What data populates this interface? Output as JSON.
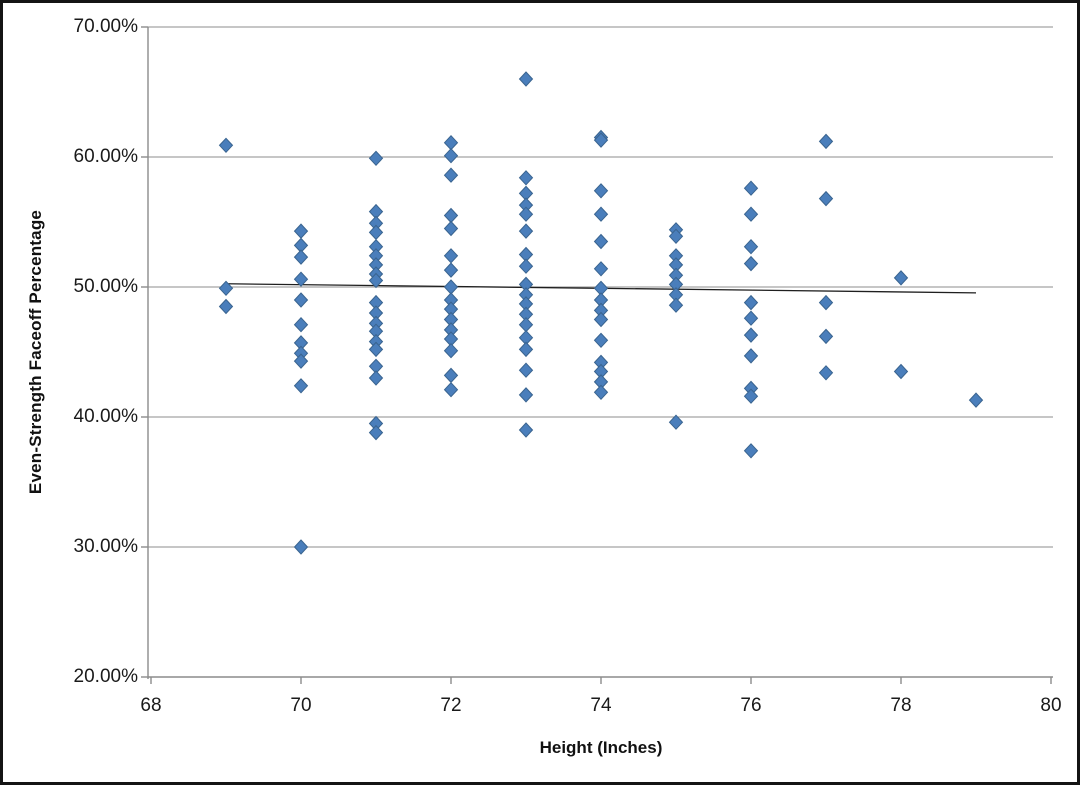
{
  "chart_data": {
    "type": "scatter",
    "title": "",
    "xlabel": "Height (Inches)",
    "ylabel": "Even-Strength Faceoff Percentage",
    "xlim": [
      68,
      80
    ],
    "ylim": [
      20,
      70
    ],
    "x_ticks": [
      "68",
      "70",
      "72",
      "74",
      "76",
      "78",
      "80"
    ],
    "x_tick_values": [
      68,
      70,
      72,
      74,
      76,
      78,
      80
    ],
    "y_ticks": [
      "70.00%",
      "60.00%",
      "50.00%",
      "40.00%",
      "30.00%",
      "20.00%"
    ],
    "y_tick_values": [
      70,
      60,
      50,
      40,
      30,
      20
    ],
    "grid": true,
    "legend": false,
    "colors": {
      "marker_fill": "#4A7EBB",
      "marker_border": "#3A648F",
      "gridline": "#8c8c8c",
      "axis": "#8c8c8c",
      "trendline": "#1f1f1f",
      "text": "#1a1a1a"
    },
    "marker_shape": "diamond",
    "trendline": {
      "x1": 69,
      "y1": 50.25,
      "x2": 79,
      "y2": 49.55
    },
    "points": [
      {
        "x": 69,
        "y": 60.9
      },
      {
        "x": 69,
        "y": 49.9
      },
      {
        "x": 69,
        "y": 48.5
      },
      {
        "x": 70,
        "y": 54.3
      },
      {
        "x": 70,
        "y": 53.2
      },
      {
        "x": 70,
        "y": 52.3
      },
      {
        "x": 70,
        "y": 50.6
      },
      {
        "x": 70,
        "y": 49.0
      },
      {
        "x": 70,
        "y": 47.1
      },
      {
        "x": 70,
        "y": 45.7
      },
      {
        "x": 70,
        "y": 44.9
      },
      {
        "x": 70,
        "y": 44.3
      },
      {
        "x": 70,
        "y": 42.4
      },
      {
        "x": 70,
        "y": 30.0
      },
      {
        "x": 71,
        "y": 59.9
      },
      {
        "x": 71,
        "y": 55.8
      },
      {
        "x": 71,
        "y": 54.9
      },
      {
        "x": 71,
        "y": 54.2
      },
      {
        "x": 71,
        "y": 53.1
      },
      {
        "x": 71,
        "y": 52.4
      },
      {
        "x": 71,
        "y": 51.7
      },
      {
        "x": 71,
        "y": 51.0
      },
      {
        "x": 71,
        "y": 50.5
      },
      {
        "x": 71,
        "y": 48.8
      },
      {
        "x": 71,
        "y": 48.0
      },
      {
        "x": 71,
        "y": 47.2
      },
      {
        "x": 71,
        "y": 46.6
      },
      {
        "x": 71,
        "y": 45.8
      },
      {
        "x": 71,
        "y": 45.2
      },
      {
        "x": 71,
        "y": 43.9
      },
      {
        "x": 71,
        "y": 43.0
      },
      {
        "x": 71,
        "y": 39.5
      },
      {
        "x": 71,
        "y": 38.8
      },
      {
        "x": 72,
        "y": 61.1
      },
      {
        "x": 72,
        "y": 60.1
      },
      {
        "x": 72,
        "y": 58.6
      },
      {
        "x": 72,
        "y": 55.5
      },
      {
        "x": 72,
        "y": 54.5
      },
      {
        "x": 72,
        "y": 52.4
      },
      {
        "x": 72,
        "y": 51.3
      },
      {
        "x": 72,
        "y": 50.0
      },
      {
        "x": 72,
        "y": 49.0
      },
      {
        "x": 72,
        "y": 48.3
      },
      {
        "x": 72,
        "y": 47.5
      },
      {
        "x": 72,
        "y": 46.7
      },
      {
        "x": 72,
        "y": 46.0
      },
      {
        "x": 72,
        "y": 45.1
      },
      {
        "x": 72,
        "y": 43.2
      },
      {
        "x": 72,
        "y": 42.1
      },
      {
        "x": 73,
        "y": 66.0
      },
      {
        "x": 73,
        "y": 58.4
      },
      {
        "x": 73,
        "y": 57.2
      },
      {
        "x": 73,
        "y": 56.3
      },
      {
        "x": 73,
        "y": 55.6
      },
      {
        "x": 73,
        "y": 54.3
      },
      {
        "x": 73,
        "y": 52.5
      },
      {
        "x": 73,
        "y": 51.6
      },
      {
        "x": 73,
        "y": 50.2
      },
      {
        "x": 73,
        "y": 49.4
      },
      {
        "x": 73,
        "y": 48.7
      },
      {
        "x": 73,
        "y": 47.9
      },
      {
        "x": 73,
        "y": 47.1
      },
      {
        "x": 73,
        "y": 46.1
      },
      {
        "x": 73,
        "y": 45.2
      },
      {
        "x": 73,
        "y": 43.6
      },
      {
        "x": 73,
        "y": 41.7
      },
      {
        "x": 73,
        "y": 39.0
      },
      {
        "x": 74,
        "y": 61.5
      },
      {
        "x": 74,
        "y": 61.3
      },
      {
        "x": 74,
        "y": 57.4
      },
      {
        "x": 74,
        "y": 55.6
      },
      {
        "x": 74,
        "y": 53.5
      },
      {
        "x": 74,
        "y": 51.4
      },
      {
        "x": 74,
        "y": 49.9
      },
      {
        "x": 74,
        "y": 49.0
      },
      {
        "x": 74,
        "y": 48.2
      },
      {
        "x": 74,
        "y": 47.5
      },
      {
        "x": 74,
        "y": 45.9
      },
      {
        "x": 74,
        "y": 44.2
      },
      {
        "x": 74,
        "y": 43.5
      },
      {
        "x": 74,
        "y": 42.7
      },
      {
        "x": 74,
        "y": 41.9
      },
      {
        "x": 75,
        "y": 54.4
      },
      {
        "x": 75,
        "y": 53.9
      },
      {
        "x": 75,
        "y": 52.4
      },
      {
        "x": 75,
        "y": 51.7
      },
      {
        "x": 75,
        "y": 50.9
      },
      {
        "x": 75,
        "y": 50.2
      },
      {
        "x": 75,
        "y": 49.4
      },
      {
        "x": 75,
        "y": 48.6
      },
      {
        "x": 75,
        "y": 39.6
      },
      {
        "x": 76,
        "y": 57.6
      },
      {
        "x": 76,
        "y": 55.6
      },
      {
        "x": 76,
        "y": 53.1
      },
      {
        "x": 76,
        "y": 51.8
      },
      {
        "x": 76,
        "y": 48.8
      },
      {
        "x": 76,
        "y": 47.6
      },
      {
        "x": 76,
        "y": 46.3
      },
      {
        "x": 76,
        "y": 44.7
      },
      {
        "x": 76,
        "y": 42.2
      },
      {
        "x": 76,
        "y": 41.6
      },
      {
        "x": 76,
        "y": 37.4
      },
      {
        "x": 77,
        "y": 61.2
      },
      {
        "x": 77,
        "y": 56.8
      },
      {
        "x": 77,
        "y": 48.8
      },
      {
        "x": 77,
        "y": 46.2
      },
      {
        "x": 77,
        "y": 43.4
      },
      {
        "x": 78,
        "y": 50.7
      },
      {
        "x": 78,
        "y": 43.5
      },
      {
        "x": 79,
        "y": 41.3
      }
    ]
  }
}
